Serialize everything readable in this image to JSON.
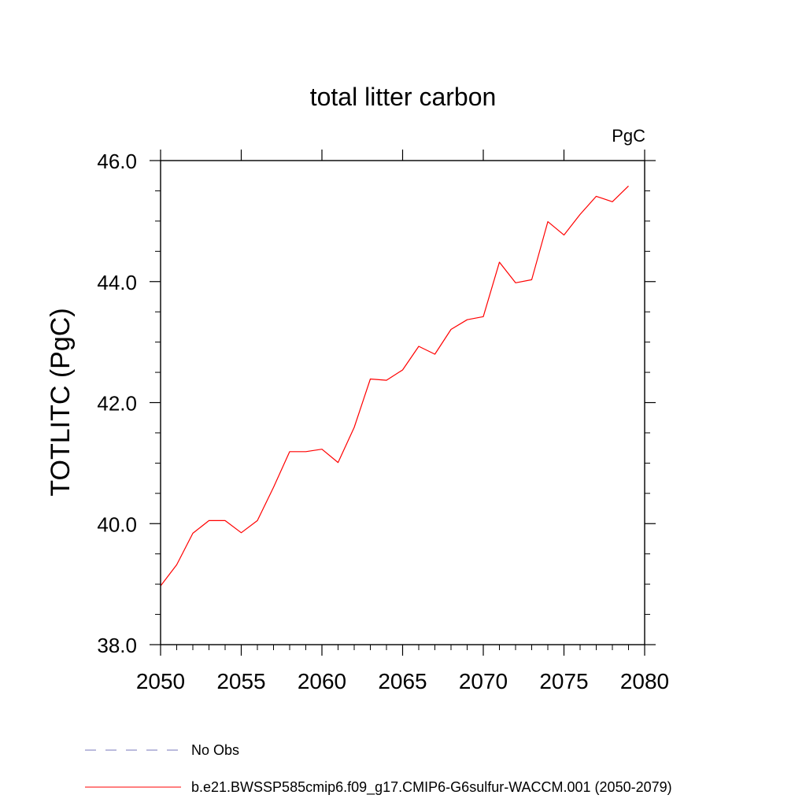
{
  "chart_data": {
    "type": "line",
    "title": "total litter carbon",
    "units": "PgC",
    "xlabel": "",
    "ylabel": "TOTLITC  (PgC)",
    "xlim": [
      2050,
      2080
    ],
    "ylim": [
      38.0,
      46.0
    ],
    "xticks": [
      2050,
      2055,
      2060,
      2065,
      2070,
      2075,
      2080
    ],
    "yticks": [
      38.0,
      40.0,
      42.0,
      44.0,
      46.0
    ],
    "ytick_labels": [
      "38.0",
      "40.0",
      "42.0",
      "44.0",
      "46.0"
    ],
    "grid": false,
    "legend_position": "bottom",
    "series": [
      {
        "name": "b.e21.BWSSP585cmip6.f09_g17.CMIP6-G6sulfur-WACCM.001 (2050-2079)",
        "color": "#ff0000",
        "style": "solid",
        "x": [
          2050,
          2051,
          2052,
          2053,
          2054,
          2055,
          2056,
          2057,
          2058,
          2059,
          2060,
          2061,
          2062,
          2063,
          2064,
          2065,
          2066,
          2067,
          2068,
          2069,
          2070,
          2071,
          2072,
          2073,
          2074,
          2075,
          2076,
          2077,
          2078,
          2079
        ],
        "y": [
          38.97,
          39.32,
          39.84,
          40.05,
          40.05,
          39.85,
          40.05,
          40.6,
          41.19,
          41.19,
          41.23,
          41.01,
          41.59,
          42.39,
          42.37,
          42.54,
          42.93,
          42.8,
          43.21,
          43.37,
          43.42,
          44.32,
          43.98,
          44.03,
          44.99,
          44.77,
          45.11,
          45.41,
          45.32,
          45.58
        ]
      }
    ],
    "legend": [
      {
        "label": "No Obs",
        "color": "#7777bb",
        "style": "dashed"
      },
      {
        "label": "b.e21.BWSSP585cmip6.f09_g17.CMIP6-G6sulfur-WACCM.001 (2050-2079)",
        "color": "#ff0000",
        "style": "solid"
      }
    ]
  }
}
